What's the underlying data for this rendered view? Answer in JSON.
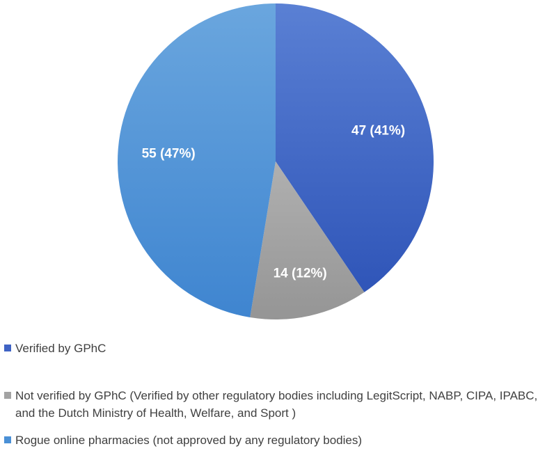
{
  "chart_data": {
    "type": "pie",
    "slices": [
      {
        "label": "Verified by GPhC",
        "value": 47,
        "data_label": "47 (41%)",
        "color": "#3f63c4"
      },
      {
        "label": "Not verified by GPhC (Verified by other regulatory bodies including LegitScript, NABP, CIPA, IPABC, and the Dutch Ministry of Health, Welfare, and Sport )",
        "value": 14,
        "data_label": "14 (12%)",
        "color": "#a3a3a3"
      },
      {
        "label": "Rogue online pharmacies (not approved by any regulatory bodies)",
        "value": 55,
        "data_label": "55 (47%)",
        "color": "#4a90d6"
      }
    ],
    "legend_position": "bottom-left"
  }
}
